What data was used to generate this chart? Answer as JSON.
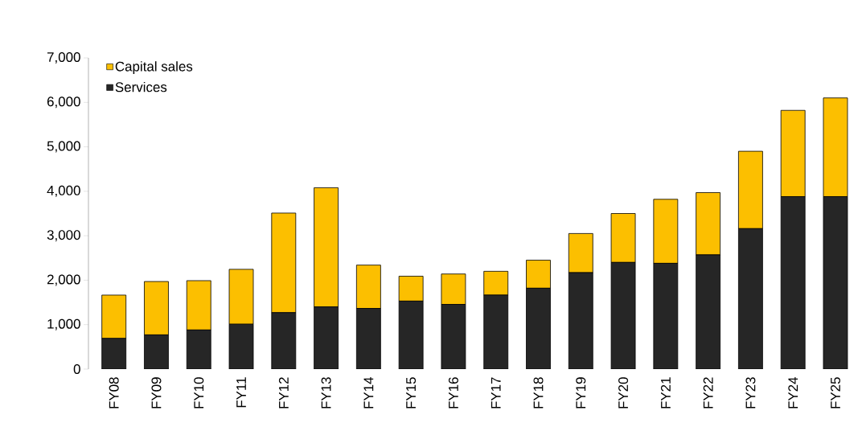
{
  "chart_data": {
    "type": "bar",
    "stacked": true,
    "categories": [
      "FY08",
      "FY09",
      "FY10",
      "FY11",
      "FY12",
      "FY13",
      "FY14",
      "FY15",
      "FY16",
      "FY17",
      "FY18",
      "FY19",
      "FY20",
      "FY21",
      "FY22",
      "FY23",
      "FY24",
      "FY25"
    ],
    "series": [
      {
        "name": "Services",
        "color": "#262626",
        "values": [
          690,
          770,
          880,
          1010,
          1270,
          1400,
          1365,
          1530,
          1455,
          1665,
          1820,
          2170,
          2400,
          2380,
          2570,
          3160,
          3880,
          3880
        ]
      },
      {
        "name": "Capital sales",
        "color": "#fcbf00",
        "values": [
          975,
          1200,
          1110,
          1235,
          2240,
          2680,
          975,
          560,
          685,
          535,
          630,
          880,
          1100,
          1440,
          1400,
          1740,
          1940,
          2220
        ]
      }
    ],
    "ylim": [
      0,
      7000
    ],
    "yticks": [
      {
        "value": 0,
        "label": "0"
      },
      {
        "value": 1000,
        "label": "1,000"
      },
      {
        "value": 2000,
        "label": "2,000"
      },
      {
        "value": 3000,
        "label": "3,000"
      },
      {
        "value": 4000,
        "label": "4,000"
      },
      {
        "value": 5000,
        "label": "5,000"
      },
      {
        "value": 6000,
        "label": "6,000"
      },
      {
        "value": 7000,
        "label": "7,000"
      }
    ],
    "grid": false,
    "legend": "top left"
  }
}
